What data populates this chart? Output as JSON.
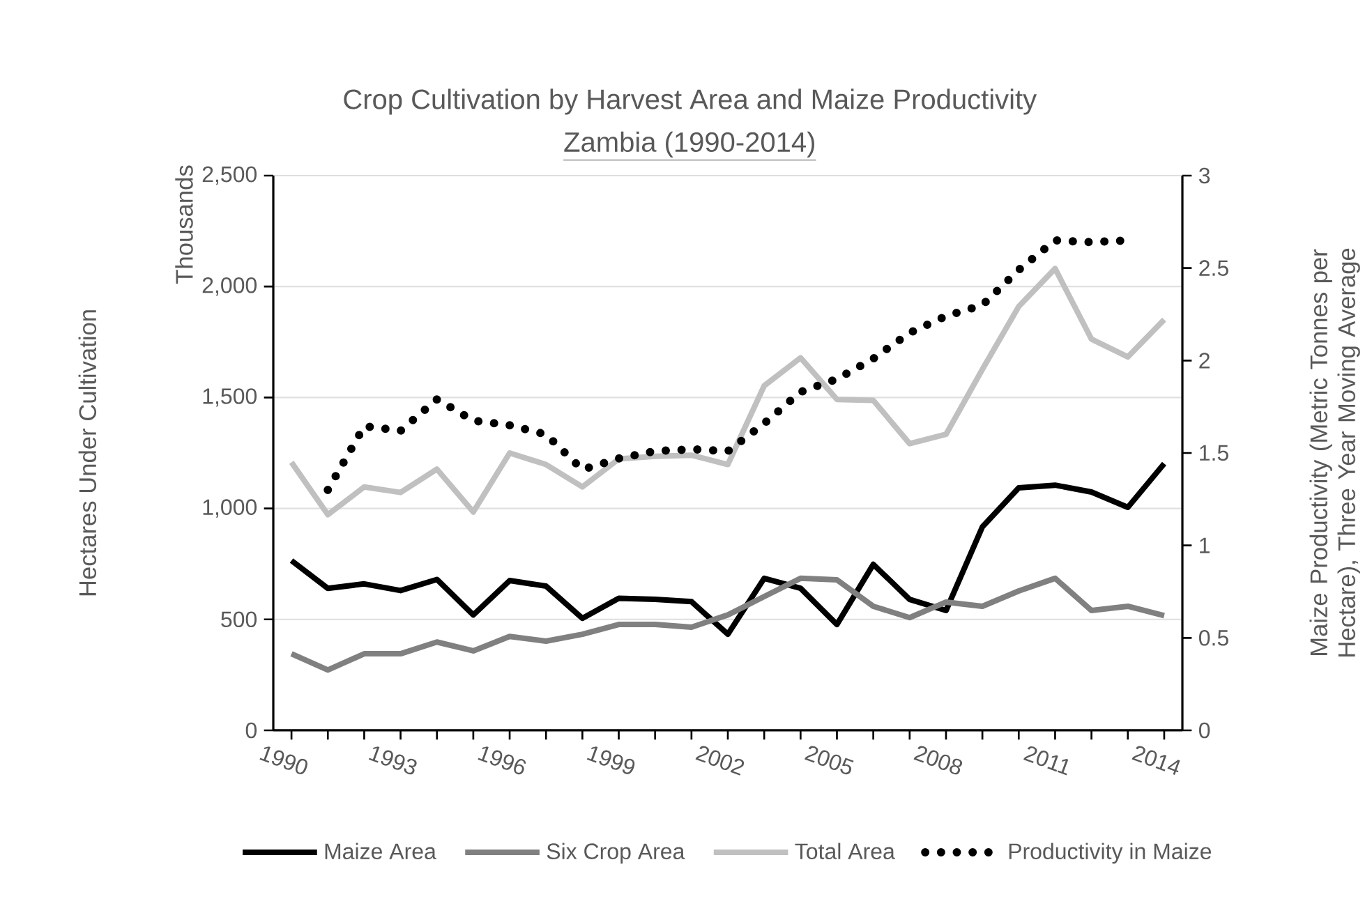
{
  "chart_data": {
    "type": "line",
    "title": "Crop Cultivation by Harvest Area and Maize Productivity",
    "subtitle": "Zambia (1990-2014)",
    "ylabel": "Hectares Under Cultivation",
    "y2label": "Maize Productivity (Metric Tonnes per Hectare), Three Year Moving Average",
    "annotations": [
      "Thousands"
    ],
    "x": [
      1990,
      1991,
      1992,
      1993,
      1994,
      1995,
      1996,
      1997,
      1998,
      1999,
      2000,
      2001,
      2002,
      2003,
      2004,
      2005,
      2006,
      2007,
      2008,
      2009,
      2010,
      2011,
      2012,
      2013,
      2014
    ],
    "series": [
      {
        "name": "Maize Area",
        "color": "#000000",
        "values": [
          765,
          640,
          660,
          630,
          680,
          520,
          675,
          650,
          505,
          595,
          590,
          580,
          433,
          685,
          640,
          477,
          748,
          590,
          540,
          917,
          1093,
          1105,
          1074,
          1005,
          1202
        ]
      },
      {
        "name": "Six Crop Area",
        "color": "#808080",
        "values": [
          345,
          272,
          345,
          345,
          398,
          358,
          423,
          402,
          433,
          477,
          477,
          465,
          520,
          603,
          685,
          678,
          559,
          508,
          578,
          559,
          628,
          685,
          540,
          559,
          517
        ]
      },
      {
        "name": "Total Area",
        "color": "#c0c0c0",
        "values": [
          1208,
          972,
          1097,
          1072,
          1177,
          984,
          1250,
          1198,
          1097,
          1223,
          1235,
          1240,
          1198,
          1553,
          1679,
          1491,
          1487,
          1292,
          1334,
          1627,
          1910,
          2081,
          1763,
          1683,
          1851
        ]
      },
      {
        "name": "Productivity in Maize",
        "color": "#000000",
        "axis": "y2",
        "line_style": "dotted",
        "values": [
          null,
          1.3,
          1.645,
          1.62,
          1.79,
          1.675,
          1.65,
          1.6,
          1.41,
          1.47,
          1.51,
          1.52,
          1.51,
          1.66,
          1.83,
          1.9,
          2.01,
          2.15,
          2.24,
          2.3,
          2.49,
          2.65,
          2.64,
          2.65,
          null
        ]
      }
    ],
    "xlim": [
      1989.5,
      2014.5
    ],
    "xticks": [
      1990,
      {
        "value": 1991,
        "label": null
      },
      {
        "value": 1992,
        "label": null
      },
      1993,
      {
        "value": 1994,
        "label": null
      },
      {
        "value": 1995,
        "label": null
      },
      1996,
      {
        "value": 1997,
        "label": null
      },
      {
        "value": 1998,
        "label": null
      },
      1999,
      {
        "value": 2000,
        "label": null
      },
      {
        "value": 2001,
        "label": null
      },
      2002,
      {
        "value": 2003,
        "label": null
      },
      {
        "value": 2004,
        "label": null
      },
      2005,
      {
        "value": 2006,
        "label": null
      },
      {
        "value": 2007,
        "label": null
      },
      2008,
      {
        "value": 2009,
        "label": null
      },
      {
        "value": 2010,
        "label": null
      },
      2011,
      {
        "value": 2012,
        "label": null
      },
      {
        "value": 2013,
        "label": null
      },
      2014
    ],
    "ylim": [
      0,
      2500
    ],
    "yticks": [
      0,
      500,
      {
        "value": 1000,
        "label": "1,000"
      },
      {
        "value": 1500,
        "label": "1,500"
      },
      {
        "value": 2000,
        "label": "2,000"
      },
      {
        "value": 2500,
        "label": "2,500"
      }
    ],
    "y2lim": [
      0,
      3
    ],
    "y2ticks": [
      0,
      0.5,
      1,
      1.5,
      2,
      2.5,
      3
    ],
    "grid": "y",
    "legend": "bottom",
    "marker": "none"
  }
}
